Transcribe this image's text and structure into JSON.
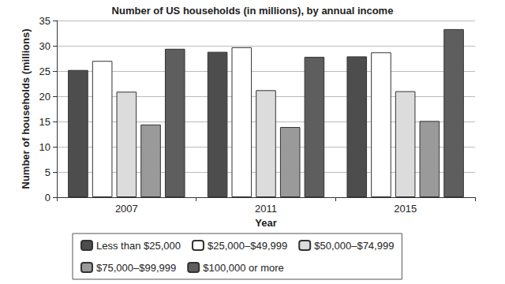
{
  "chart_data": {
    "type": "bar",
    "title": "Number of US households (in millions), by annual income",
    "x_label": "Year",
    "y_label": "Number of households (millions)",
    "categories": [
      "2007",
      "2011",
      "2015"
    ],
    "series": [
      {
        "name": "Less than $25,000",
        "color": "#4d4d4d",
        "values": [
          25.2,
          28.8,
          27.9
        ]
      },
      {
        "name": "$25,000–$49,999",
        "color": "#ffffff",
        "values": [
          27.0,
          29.7,
          28.7
        ]
      },
      {
        "name": "$50,000–$74,999",
        "color": "#dcdcdc",
        "values": [
          20.9,
          21.2,
          21.0
        ]
      },
      {
        "name": "$75,000–$99,999",
        "color": "#9a9a9a",
        "values": [
          14.4,
          13.9,
          15.1
        ]
      },
      {
        "name": "$100,000 or more",
        "color": "#5e5e5e",
        "values": [
          29.4,
          27.8,
          33.3
        ]
      }
    ],
    "ylim": [
      0,
      35
    ],
    "yticks": [
      0,
      5,
      10,
      15,
      20,
      25,
      30,
      35
    ],
    "grid": true,
    "legend": "bottom"
  }
}
